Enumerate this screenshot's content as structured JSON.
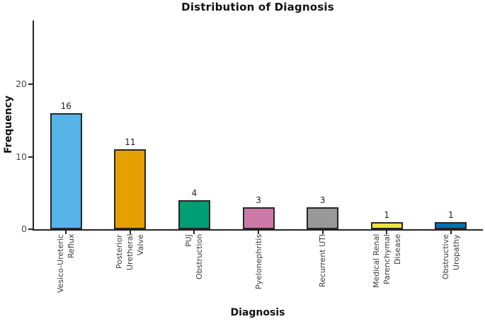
{
  "chart_data": {
    "type": "bar",
    "title": "Distribution of Diagnosis",
    "xlabel": "Diagnosis",
    "ylabel": "Frequency",
    "ylim": [
      0,
      28.8
    ],
    "y_ticks": [
      0,
      10,
      20
    ],
    "grid": false,
    "legend": false,
    "bar_edge_color": "#262626",
    "axis_color": "#252525",
    "categories": [
      "Vesico-Ureteric\nReflux",
      "Posterior\nUretheral\nValve",
      "PUJ\nObstruction",
      "Pyelonephritis",
      "Recurrent UTI",
      "Medical Renal\nParenchymal\nDisease",
      "Obstructive\nUropathy"
    ],
    "values": [
      16,
      11,
      4,
      3,
      3,
      1,
      1
    ],
    "bar_colors": [
      "#56B4E9",
      "#E69F00",
      "#009E73",
      "#CC79A7",
      "#999999",
      "#F0E442",
      "#0072B2"
    ]
  }
}
